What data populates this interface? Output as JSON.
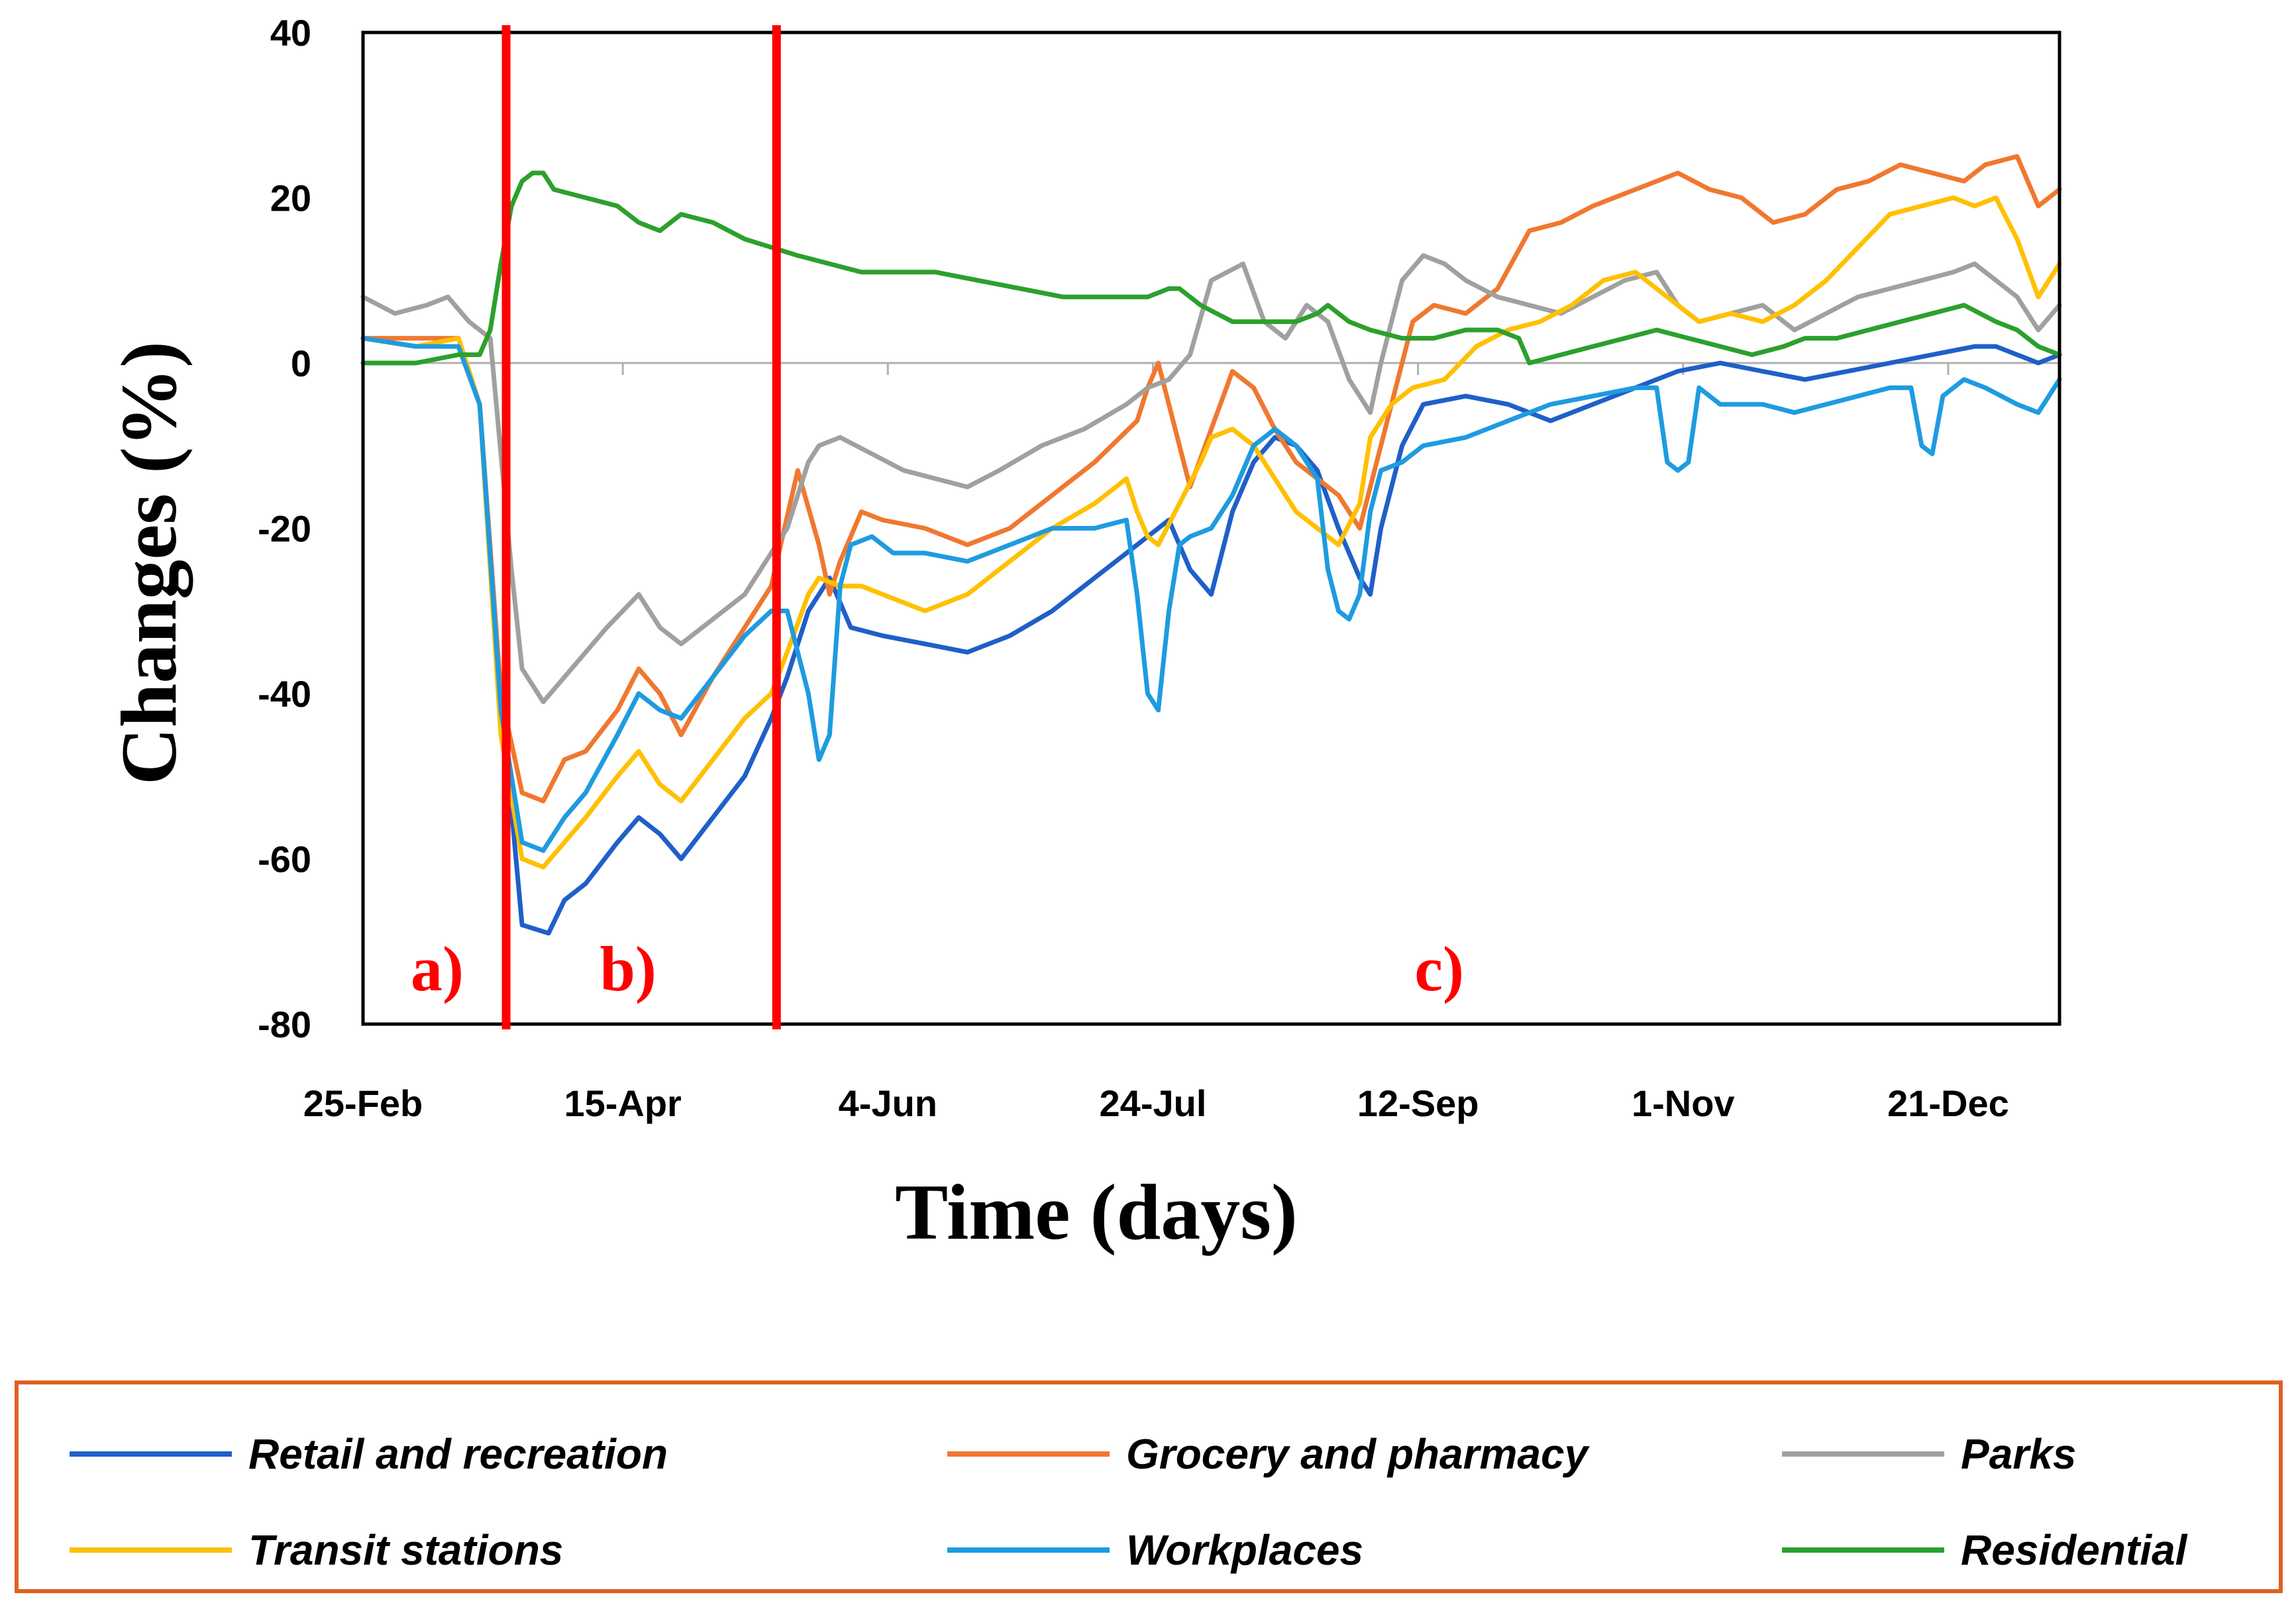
{
  "chart_data": {
    "type": "line",
    "title": "",
    "xlabel": "Time (days)",
    "ylabel": "Changes (%)",
    "xlim": [
      0,
      320
    ],
    "ylim": [
      -80,
      40
    ],
    "yticks": [
      40,
      20,
      0,
      -20,
      -40,
      -60,
      -80
    ],
    "xticks": [
      {
        "label": "25-Feb",
        "day": 0
      },
      {
        "label": "15-Apr",
        "day": 49
      },
      {
        "label": "4-Jun",
        "day": 99
      },
      {
        "label": "24-Jul",
        "day": 149
      },
      {
        "label": "12-Sep",
        "day": 199
      },
      {
        "label": "1-Nov",
        "day": 249
      },
      {
        "label": "21-Dec",
        "day": 299
      }
    ],
    "phase_lines_day": [
      27,
      78
    ],
    "phase_labels": [
      {
        "text": "a)",
        "day": 14
      },
      {
        "text": "b)",
        "day": 50
      },
      {
        "text": "c)",
        "day": 203
      }
    ],
    "series": [
      {
        "name": "Retail and recreation",
        "color": "#1f5fc8",
        "x": [
          0,
          10,
          18,
          22,
          26,
          30,
          35,
          38,
          42,
          48,
          52,
          56,
          60,
          66,
          72,
          77,
          80,
          84,
          88,
          92,
          98,
          106,
          114,
          122,
          130,
          138,
          146,
          150,
          152,
          156,
          160,
          164,
          168,
          172,
          176,
          180,
          184,
          188,
          190,
          192,
          196,
          200,
          208,
          216,
          224,
          232,
          240,
          248,
          256,
          264,
          272,
          280,
          288,
          296,
          304,
          308,
          312,
          316,
          320
        ],
        "y": [
          3,
          2,
          2,
          -5,
          -40,
          -68,
          -69,
          -65,
          -63,
          -58,
          -55,
          -57,
          -60,
          -55,
          -50,
          -43,
          -38,
          -30,
          -26,
          -32,
          -33,
          -34,
          -35,
          -33,
          -30,
          -26,
          -22,
          -20,
          -19,
          -25,
          -28,
          -18,
          -12,
          -9,
          -10,
          -13,
          -20,
          -26,
          -28,
          -20,
          -10,
          -5,
          -4,
          -5,
          -7,
          -5,
          -3,
          -1,
          0,
          -1,
          -2,
          -1,
          0,
          1,
          2,
          2,
          1,
          0,
          1
        ]
      },
      {
        "name": "Grocery and pharmacy",
        "color": "#f07830",
        "x": [
          0,
          10,
          18,
          22,
          26,
          30,
          34,
          38,
          42,
          48,
          52,
          56,
          60,
          66,
          72,
          77,
          82,
          86,
          88,
          90,
          94,
          98,
          106,
          114,
          122,
          130,
          138,
          146,
          148,
          150,
          152,
          156,
          160,
          164,
          168,
          172,
          176,
          180,
          184,
          188,
          190,
          194,
          198,
          202,
          208,
          214,
          220,
          226,
          232,
          240,
          248,
          254,
          260,
          266,
          272,
          278,
          284,
          290,
          296,
          302,
          306,
          312,
          316,
          320
        ],
        "y": [
          3,
          3,
          3,
          -5,
          -40,
          -52,
          -53,
          -48,
          -47,
          -42,
          -37,
          -40,
          -45,
          -38,
          -32,
          -27,
          -13,
          -22,
          -28,
          -24,
          -18,
          -19,
          -20,
          -22,
          -20,
          -16,
          -12,
          -7,
          -3,
          0,
          -5,
          -15,
          -8,
          -1,
          -3,
          -8,
          -12,
          -14,
          -16,
          -20,
          -15,
          -5,
          5,
          7,
          6,
          9,
          16,
          17,
          19,
          21,
          23,
          21,
          20,
          17,
          18,
          21,
          22,
          24,
          23,
          22,
          24,
          25,
          19,
          21
        ]
      },
      {
        "name": "Parks",
        "color": "#a0a0a0",
        "x": [
          0,
          6,
          12,
          16,
          20,
          24,
          28,
          30,
          34,
          38,
          42,
          46,
          52,
          56,
          60,
          66,
          72,
          76,
          80,
          84,
          86,
          90,
          96,
          102,
          108,
          114,
          120,
          128,
          136,
          144,
          148,
          152,
          156,
          160,
          166,
          170,
          174,
          178,
          182,
          186,
          190,
          192,
          194,
          196,
          200,
          204,
          208,
          214,
          220,
          226,
          232,
          238,
          244,
          248,
          252,
          258,
          264,
          270,
          276,
          282,
          288,
          294,
          300,
          304,
          308,
          312,
          316,
          320
        ],
        "y": [
          8,
          6,
          7,
          8,
          5,
          3,
          -25,
          -37,
          -41,
          -38,
          -35,
          -32,
          -28,
          -32,
          -34,
          -31,
          -28,
          -24,
          -20,
          -12,
          -10,
          -9,
          -11,
          -13,
          -14,
          -15,
          -13,
          -10,
          -8,
          -5,
          -3,
          -2,
          1,
          10,
          12,
          5,
          3,
          7,
          5,
          -2,
          -6,
          0,
          5,
          10,
          13,
          12,
          10,
          8,
          7,
          6,
          8,
          10,
          11,
          7,
          5,
          6,
          7,
          4,
          6,
          8,
          9,
          10,
          11,
          12,
          10,
          8,
          4,
          7
        ]
      },
      {
        "name": "Transit stations",
        "color": "#ffc000",
        "x": [
          0,
          10,
          18,
          22,
          26,
          30,
          34,
          38,
          42,
          48,
          52,
          56,
          60,
          66,
          72,
          77,
          80,
          84,
          86,
          90,
          94,
          98,
          106,
          114,
          122,
          130,
          138,
          144,
          146,
          148,
          150,
          154,
          158,
          160,
          164,
          168,
          172,
          176,
          180,
          184,
          188,
          190,
          194,
          198,
          204,
          210,
          216,
          222,
          228,
          234,
          240,
          246,
          252,
          258,
          264,
          270,
          276,
          282,
          288,
          294,
          300,
          304,
          308,
          312,
          316,
          320
        ],
        "y": [
          3,
          2,
          3,
          -5,
          -45,
          -60,
          -61,
          -58,
          -55,
          -50,
          -47,
          -51,
          -53,
          -48,
          -43,
          -40,
          -35,
          -28,
          -26,
          -27,
          -27,
          -28,
          -30,
          -28,
          -24,
          -20,
          -17,
          -14,
          -18,
          -21,
          -22,
          -17,
          -12,
          -9,
          -8,
          -10,
          -14,
          -18,
          -20,
          -22,
          -17,
          -9,
          -5,
          -3,
          -2,
          2,
          4,
          5,
          7,
          10,
          11,
          8,
          5,
          6,
          5,
          7,
          10,
          14,
          18,
          19,
          20,
          19,
          20,
          15,
          8,
          12
        ]
      },
      {
        "name": "Workplaces",
        "color": "#1e9be0",
        "x": [
          0,
          10,
          18,
          22,
          26,
          30,
          34,
          38,
          42,
          48,
          52,
          56,
          60,
          66,
          72,
          77,
          80,
          84,
          86,
          88,
          90,
          92,
          96,
          100,
          106,
          114,
          122,
          130,
          138,
          144,
          146,
          148,
          150,
          152,
          154,
          156,
          160,
          164,
          168,
          172,
          176,
          180,
          182,
          184,
          186,
          188,
          190,
          192,
          196,
          200,
          208,
          216,
          224,
          232,
          240,
          244,
          246,
          248,
          250,
          252,
          254,
          256,
          260,
          264,
          270,
          276,
          282,
          288,
          292,
          294,
          296,
          298,
          302,
          306,
          312,
          316,
          320
        ],
        "y": [
          3,
          2,
          2,
          -5,
          -42,
          -58,
          -59,
          -55,
          -52,
          -45,
          -40,
          -42,
          -43,
          -38,
          -33,
          -30,
          -30,
          -40,
          -48,
          -45,
          -27,
          -22,
          -21,
          -23,
          -23,
          -24,
          -22,
          -20,
          -20,
          -19,
          -28,
          -40,
          -42,
          -30,
          -22,
          -21,
          -20,
          -16,
          -10,
          -8,
          -10,
          -14,
          -25,
          -30,
          -31,
          -28,
          -18,
          -13,
          -12,
          -10,
          -9,
          -7,
          -5,
          -4,
          -3,
          -3,
          -12,
          -13,
          -12,
          -3,
          -4,
          -5,
          -5,
          -5,
          -6,
          -5,
          -4,
          -3,
          -3,
          -10,
          -11,
          -4,
          -2,
          -3,
          -5,
          -6,
          -2
        ]
      },
      {
        "name": "Residential",
        "color": "#2ca02c",
        "x": [
          0,
          10,
          18,
          22,
          24,
          26,
          28,
          30,
          32,
          34,
          36,
          42,
          48,
          52,
          56,
          60,
          66,
          72,
          77,
          82,
          88,
          94,
          100,
          108,
          116,
          124,
          132,
          140,
          148,
          152,
          154,
          158,
          164,
          170,
          176,
          180,
          182,
          186,
          190,
          196,
          202,
          208,
          214,
          218,
          220,
          226,
          232,
          238,
          244,
          250,
          256,
          262,
          268,
          272,
          278,
          284,
          290,
          296,
          302,
          308,
          312,
          316,
          320
        ],
        "y": [
          0,
          0,
          1,
          1,
          4,
          12,
          19,
          22,
          23,
          23,
          21,
          20,
          19,
          17,
          16,
          18,
          17,
          15,
          14,
          13,
          12,
          11,
          11,
          11,
          10,
          9,
          8,
          8,
          8,
          9,
          9,
          7,
          5,
          5,
          5,
          6,
          7,
          5,
          4,
          3,
          3,
          4,
          4,
          3,
          0,
          1,
          2,
          3,
          4,
          3,
          2,
          1,
          2,
          3,
          3,
          4,
          5,
          6,
          7,
          5,
          4,
          2,
          1
        ]
      }
    ]
  },
  "legend": {
    "items": [
      {
        "label": "Retail and recreation",
        "color": "#1f5fc8"
      },
      {
        "label": "Grocery and pharmacy",
        "color": "#f07830"
      },
      {
        "label": "Parks",
        "color": "#a0a0a0"
      },
      {
        "label": "Transit stations",
        "color": "#ffc000"
      },
      {
        "label": "Workplaces",
        "color": "#1e9be0"
      },
      {
        "label": "Residential",
        "color": "#2ca02c"
      }
    ],
    "border_color": "#e06020"
  },
  "phase_line_color": "#ff0000"
}
